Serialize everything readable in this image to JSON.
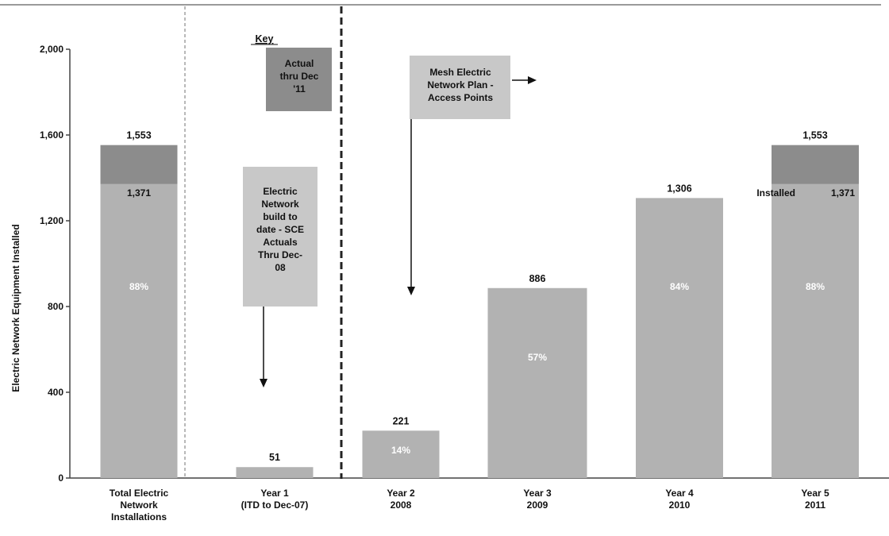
{
  "chart_data": {
    "type": "bar",
    "stacked": true,
    "ylabel": "Electric Network Equipment Installed",
    "ylim": [
      0,
      2000
    ],
    "yticks": [
      0,
      400,
      800,
      1200,
      1600,
      2000
    ],
    "ytick_labels": [
      "0",
      "400",
      "800",
      "1,200",
      "1,600",
      "2,000"
    ],
    "grid": false,
    "categories": [
      {
        "lines": [
          "Total Electric",
          "Network",
          "Installations"
        ]
      },
      {
        "lines": [
          "Year 1",
          "(ITD to Dec-07)"
        ]
      },
      {
        "lines": [
          "Year 2",
          "2008"
        ]
      },
      {
        "lines": [
          "Year 3",
          "2009"
        ]
      },
      {
        "lines": [
          "Year 4",
          "2010"
        ]
      },
      {
        "lines": [
          "Year 5",
          "2011"
        ]
      }
    ],
    "series": [
      {
        "values": [
          1371,
          51,
          221,
          886,
          1306,
          1371
        ]
      },
      {
        "values": [
          182,
          0,
          0,
          0,
          0,
          182
        ]
      }
    ],
    "totals": [
      1553,
      51,
      221,
      886,
      1306,
      1553
    ],
    "total_labels": [
      "1,553",
      "51",
      "221",
      "886",
      "1,306",
      "1,553"
    ],
    "segment_labels": [
      "1,371",
      "",
      "",
      "",
      "",
      "1,371"
    ],
    "percent_labels": [
      "88%",
      "",
      "14%",
      "57%",
      "84%",
      "88%"
    ],
    "installed_label": "Installed",
    "key": {
      "title": "Key",
      "actual_label": [
        "Actual",
        "thru Dec",
        "'11"
      ]
    },
    "annotations": {
      "plan": [
        "Mesh Electric",
        "Network Plan -",
        "Access Points"
      ],
      "build": [
        "Electric",
        "Network",
        "build to",
        "date - SCE",
        "Actuals",
        "Thru Dec-",
        "08"
      ]
    },
    "colors": {
      "actual": "#8c8c8c",
      "base": "#b2b2b2",
      "callout": "#c8c8c8",
      "text": "#111111",
      "axis": "#444444"
    }
  }
}
